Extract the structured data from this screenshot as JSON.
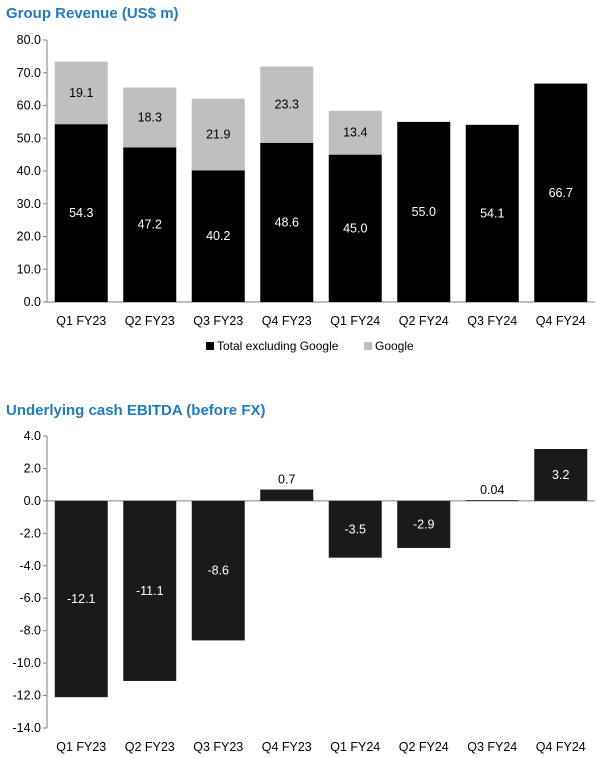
{
  "chart_data": [
    {
      "type": "bar",
      "stacked": true,
      "title": "Group Revenue (US$ m)",
      "categories": [
        "Q1 FY23",
        "Q2 FY23",
        "Q3 FY23",
        "Q4 FY23",
        "Q1 FY24",
        "Q2 FY24",
        "Q3 FY24",
        "Q4 FY24"
      ],
      "series": [
        {
          "name": "Total excluding Google",
          "color": "#000000",
          "label_color": "#ffffff",
          "values": [
            54.3,
            47.2,
            40.2,
            48.6,
            45.0,
            55.0,
            54.1,
            66.7
          ],
          "labels": [
            "54.3",
            "47.2",
            "40.2",
            "48.6",
            "45.0",
            "55.0",
            "54.1",
            "66.7"
          ]
        },
        {
          "name": "Google",
          "color": "#bfbfbf",
          "label_color": "#000000",
          "values": [
            19.1,
            18.3,
            21.9,
            23.3,
            13.4,
            0,
            0,
            0
          ],
          "labels": [
            "19.1",
            "18.3",
            "21.9",
            "23.3",
            "13.4",
            "",
            "",
            ""
          ]
        }
      ],
      "yticks": [
        "0.0",
        "10.0",
        "20.0",
        "30.0",
        "40.0",
        "50.0",
        "60.0",
        "70.0",
        "80.0"
      ],
      "ylim": [
        0,
        80
      ],
      "xlabel": "",
      "ylabel": "",
      "legend": "bottom-center"
    },
    {
      "type": "bar",
      "title": "Underlying cash EBITDA (before FX)",
      "categories": [
        "Q1 FY23",
        "Q2 FY23",
        "Q3 FY23",
        "Q4 FY23",
        "Q1 FY24",
        "Q2 FY24",
        "Q3 FY24",
        "Q4 FY24"
      ],
      "values": [
        -12.1,
        -11.1,
        -8.6,
        0.7,
        -3.5,
        -2.9,
        0.04,
        3.2
      ],
      "labels": [
        "-12.1",
        "-11.1",
        "-8.6",
        "0.7",
        "-3.5",
        "-2.9",
        "0.04",
        "3.2"
      ],
      "color": "#1a1a1a",
      "yticks": [
        "4.0",
        "2.0",
        "0.0",
        "-2.0",
        "-4.0",
        "-6.0",
        "-8.0",
        "-10.0",
        "-12.0",
        "-14.0"
      ],
      "ylim": [
        -14,
        4
      ],
      "xlabel": "",
      "ylabel": ""
    }
  ]
}
